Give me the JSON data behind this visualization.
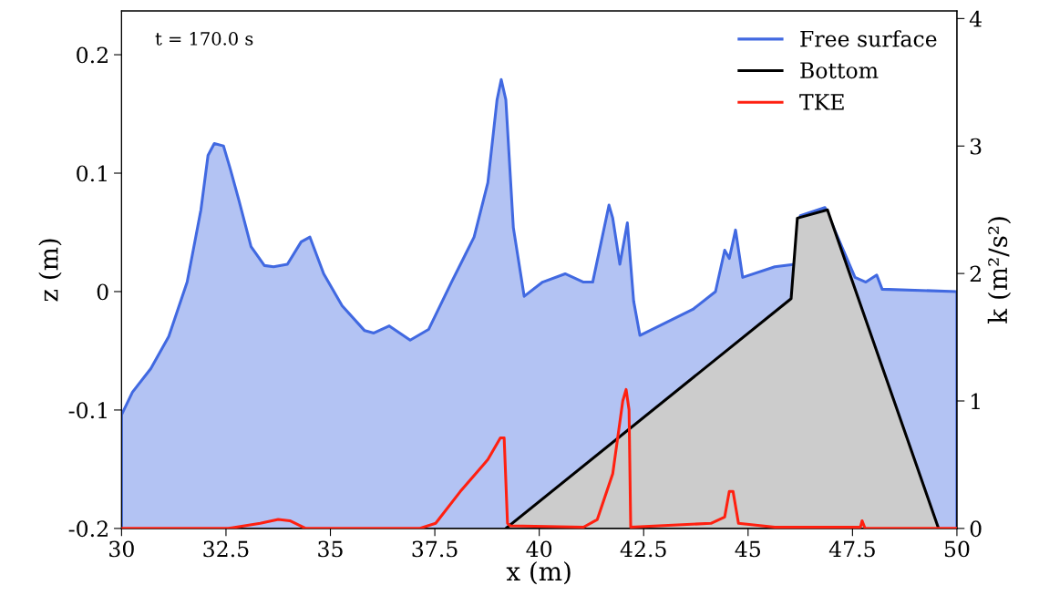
{
  "chart_data": {
    "type": "area",
    "xlabel": "x (m)",
    "ylabel": "z (m)",
    "y2label": "k (m²/s²)",
    "annotations": [
      "t = 170.0 s"
    ],
    "xlim": [
      30,
      50
    ],
    "xticks": [
      30,
      32.5,
      35,
      37.5,
      40,
      42.5,
      45,
      47.5,
      50
    ],
    "ylim": [
      -0.2,
      0.237
    ],
    "yticks": [
      {
        "value": -0.2,
        "label": "-0.2"
      },
      {
        "value": -0.1,
        "label": "-0.1"
      },
      0,
      0.1,
      0.2
    ],
    "y2lim": [
      0,
      4.06
    ],
    "y2ticks": [
      0,
      1,
      2,
      3,
      4
    ],
    "legend": "top right",
    "grid": false,
    "series": [
      {
        "name": "Free surface",
        "color": "#4169e1",
        "x": [
          30,
          30,
          30.26,
          30.7,
          31.13,
          31.57,
          31.9,
          32.07,
          32.22,
          32.44,
          32.6,
          32.81,
          33.1,
          33.42,
          33.64,
          33.97,
          34.3,
          34.51,
          34.84,
          35.28,
          35.82,
          36.04,
          36.41,
          36.91,
          37.35,
          37.9,
          38.44,
          38.77,
          38.99,
          39.09,
          39.2,
          39.38,
          39.64,
          40.08,
          40.62,
          41.06,
          41.28,
          41.67,
          41.76,
          41.93,
          42.11,
          42.26,
          42.41,
          43.68,
          44.22,
          44.44,
          44.55,
          44.7,
          44.87,
          45.64,
          46.12,
          46.25,
          46.84,
          47.56,
          47.82,
          48.08,
          48.21,
          50,
          50
        ],
        "values": [
          -0.2,
          -0.104,
          -0.085,
          -0.065,
          -0.038,
          0.008,
          0.069,
          0.115,
          0.125,
          0.123,
          0.104,
          0.077,
          0.038,
          0.022,
          0.021,
          0.023,
          0.042,
          0.046,
          0.015,
          -0.012,
          -0.033,
          -0.035,
          -0.029,
          -0.041,
          -0.032,
          0.008,
          0.046,
          0.092,
          0.162,
          0.179,
          0.162,
          0.054,
          -0.004,
          0.008,
          0.015,
          0.008,
          0.008,
          0.073,
          0.062,
          0.023,
          0.058,
          -0.008,
          -0.037,
          -0.015,
          0,
          0.035,
          0.028,
          0.052,
          0.012,
          0.021,
          0.023,
          0.064,
          0.071,
          0.012,
          0.008,
          0.014,
          0.002,
          0,
          -0.2
        ]
      },
      {
        "name": "Bottom",
        "color": "#000000",
        "x": [
          39.2,
          46.03,
          46.18,
          46.9,
          49.56
        ],
        "values": [
          -0.2,
          -0.006,
          0.062,
          0.069,
          -0.2
        ]
      },
      {
        "name": "TKE",
        "type": "line",
        "axis": "y2",
        "color": "#ff2010",
        "x": [
          30,
          32.55,
          33.32,
          33.75,
          34.03,
          34.41,
          37.13,
          37.52,
          38.11,
          38.77,
          39.07,
          39.16,
          39.24,
          39.31,
          41.06,
          41.39,
          41.76,
          42.0,
          42.08,
          42.15,
          42.19,
          44.11,
          44.44,
          44.55,
          44.64,
          44.77,
          45.64,
          47.69,
          47.73,
          47.8,
          50
        ],
        "values": [
          0,
          0,
          0.04,
          0.07,
          0.06,
          0,
          0,
          0.04,
          0.29,
          0.54,
          0.71,
          0.71,
          0.04,
          0.02,
          0.01,
          0.07,
          0.43,
          1.0,
          1.09,
          0.93,
          0.01,
          0.04,
          0.09,
          0.29,
          0.29,
          0.04,
          0.01,
          0.01,
          0.06,
          0,
          0
        ]
      }
    ]
  }
}
